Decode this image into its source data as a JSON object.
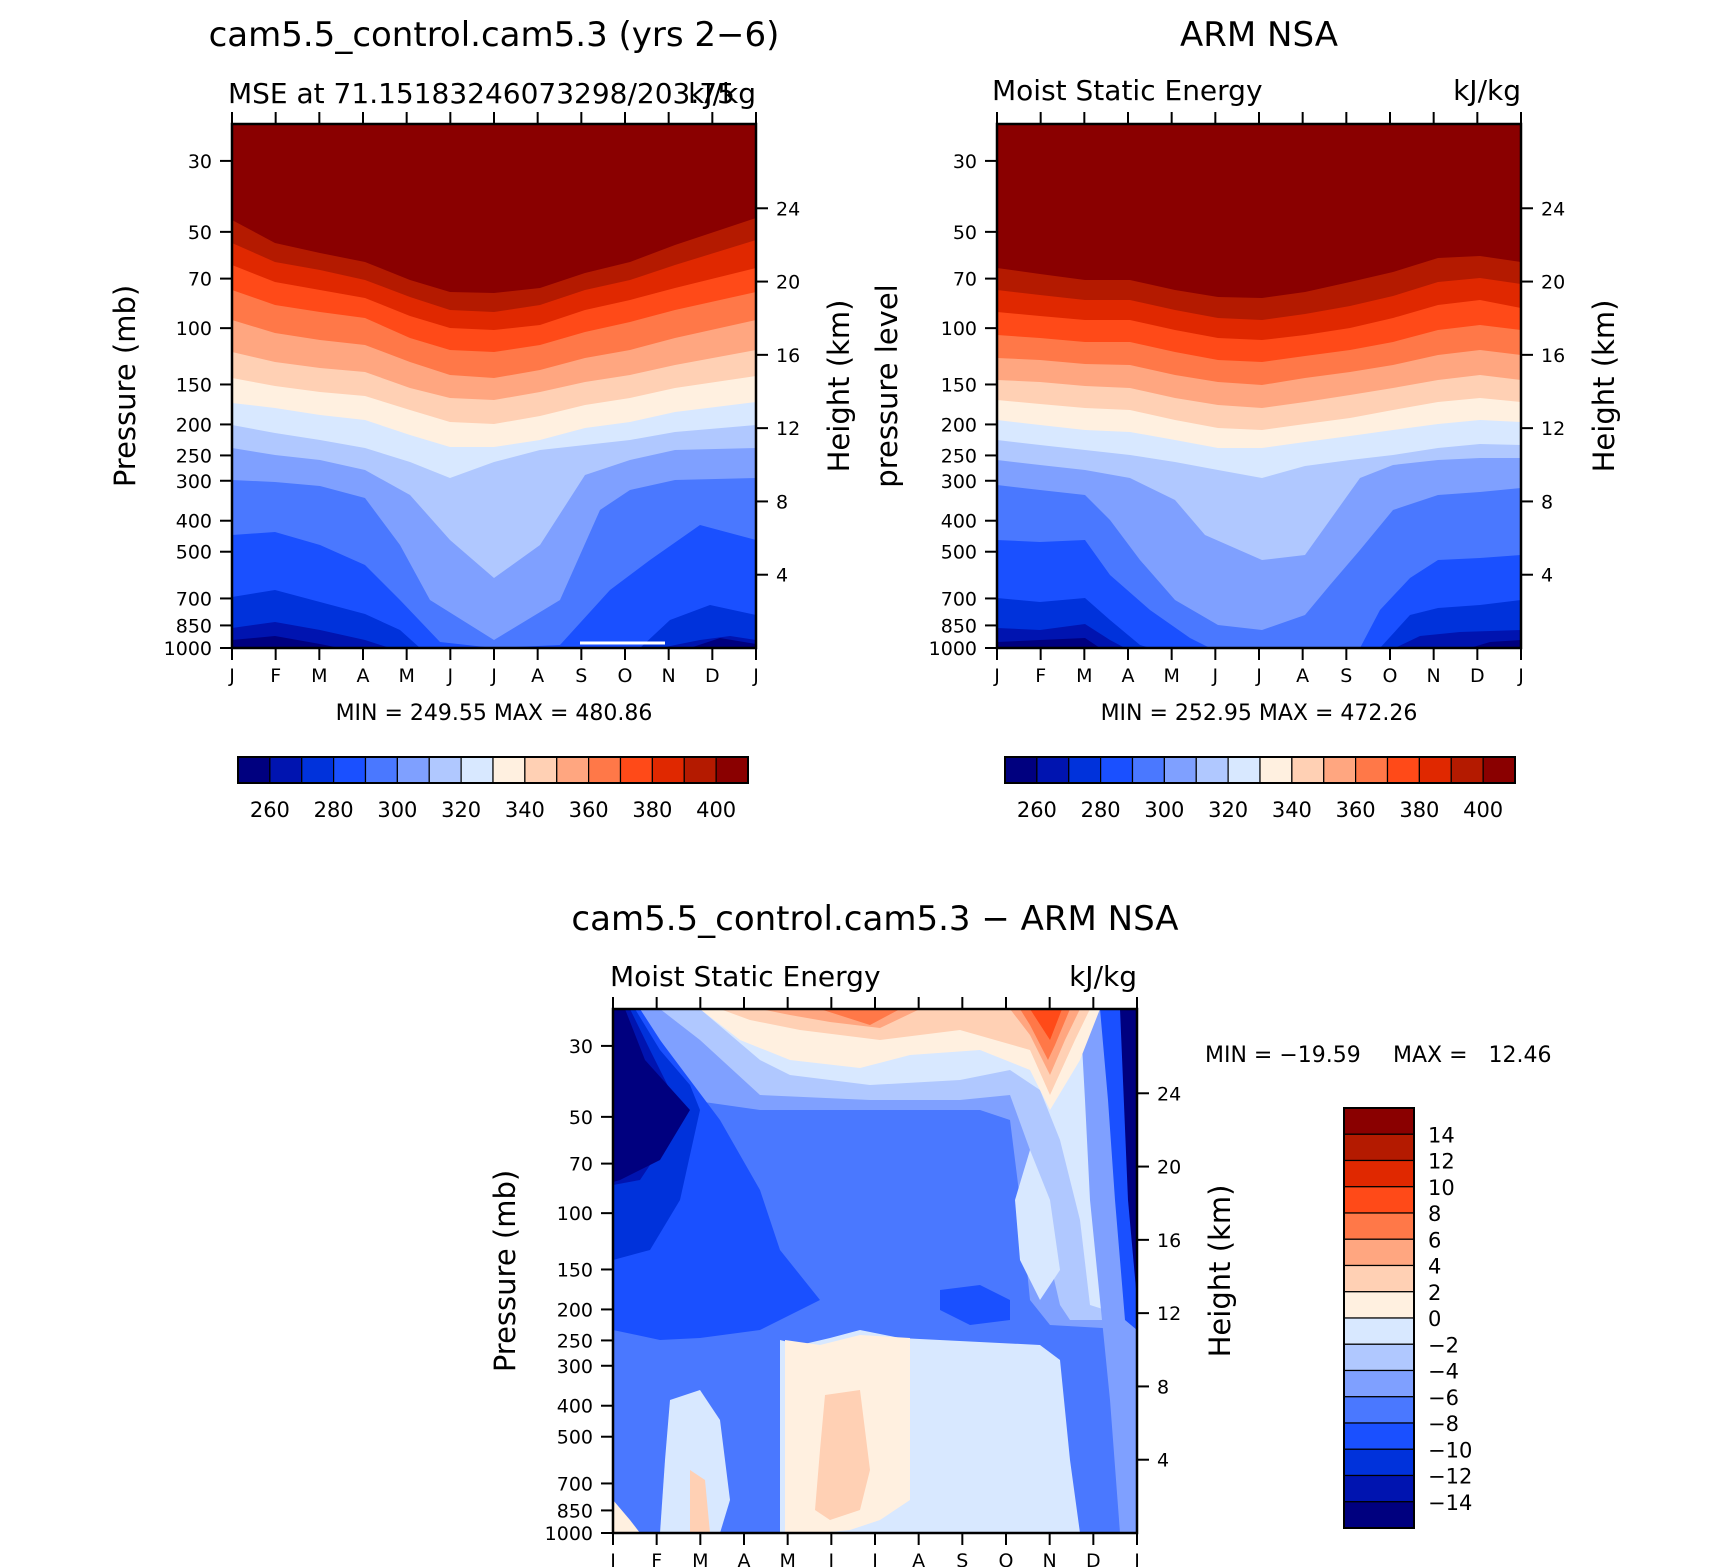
{
  "colors": {
    "levels": [
      "#00007f",
      "#0014b0",
      "#0032db",
      "#1a50ff",
      "#4a78ff",
      "#7fa0ff",
      "#b0c8ff",
      "#d8e8ff",
      "#fff0e0",
      "#ffd0b4",
      "#ffa680",
      "#ff7848",
      "#ff4a18",
      "#e02800",
      "#b41a00",
      "#8a0000"
    ]
  },
  "chart_data": [
    {
      "type": "heatmap",
      "panel": "model",
      "title": "cam5.5_control.cam5.3 (yrs 2−6)",
      "subtitle_left": "MSE at 71.15183246073298/203.75",
      "subtitle_right": "kJ/kg",
      "ylabel": "Pressure (mb)",
      "ylabel_right": "Height (km)",
      "stats": "MIN = 249.55 MAX = 480.86",
      "x": [
        "J",
        "F",
        "M",
        "A",
        "M",
        "J",
        "J",
        "A",
        "S",
        "O",
        "N",
        "D",
        "J"
      ],
      "y_pressure_ticks": [
        "30",
        "50",
        "70",
        "100",
        "150",
        "200",
        "250",
        "300",
        "400",
        "500",
        "700",
        "850",
        "1000"
      ],
      "y_height_ticks": [
        "24",
        "20",
        "16",
        "12",
        "8",
        "4"
      ],
      "legend_labels": [
        "260",
        "280",
        "300",
        "320",
        "340",
        "360",
        "380",
        "400"
      ],
      "level_boundaries_pressure_mb": {
        "low_at_top": [
          48,
          58,
          62,
          66,
          72,
          80,
          84,
          80,
          72,
          66,
          60,
          50,
          48
        ],
        "low_at_bottom": [
          985,
          985,
          990,
          1000,
          1000,
          1000,
          1000,
          1000,
          1000,
          1000,
          990,
          980,
          985
        ],
        "transition_white_top": [
          175,
          180,
          182,
          182,
          195,
          215,
          225,
          215,
          195,
          185,
          182,
          178,
          175
        ]
      }
    },
    {
      "type": "heatmap",
      "panel": "observations",
      "title": "ARM NSA",
      "subtitle_left": "Moist Static Energy",
      "subtitle_right": "kJ/kg",
      "ylabel": "pressure level",
      "ylabel_right": "Height (km)",
      "stats": "MIN = 252.95 MAX = 472.26",
      "x": [
        "J",
        "F",
        "M",
        "A",
        "M",
        "J",
        "J",
        "A",
        "S",
        "O",
        "N",
        "D",
        "J"
      ],
      "y_pressure_ticks": [
        "30",
        "50",
        "70",
        "100",
        "150",
        "200",
        "250",
        "300",
        "400",
        "500",
        "700",
        "850",
        "1000"
      ],
      "y_height_ticks": [
        "24",
        "20",
        "16",
        "12",
        "8",
        "4"
      ],
      "legend_labels": [
        "260",
        "280",
        "300",
        "320",
        "340",
        "360",
        "380",
        "400"
      ]
    },
    {
      "type": "heatmap",
      "panel": "difference",
      "title": "cam5.5_control.cam5.3 − ARM NSA",
      "subtitle_left": "Moist Static Energy",
      "subtitle_right": "kJ/kg",
      "ylabel": "Pressure (mb)",
      "ylabel_right": "Height (km)",
      "stats_min": "MIN = −19.59",
      "stats_max": "MAX =   12.46",
      "x": [
        "J",
        "F",
        "M",
        "A",
        "M",
        "J",
        "J",
        "A",
        "S",
        "O",
        "N",
        "D",
        "J"
      ],
      "y_pressure_ticks": [
        "30",
        "50",
        "70",
        "100",
        "150",
        "200",
        "250",
        "300",
        "400",
        "500",
        "700",
        "850",
        "1000"
      ],
      "y_height_ticks": [
        "24",
        "20",
        "16",
        "12",
        "8",
        "4"
      ],
      "legend_labels": [
        "14",
        "12",
        "10",
        "8",
        "6",
        "4",
        "2",
        "0",
        "−2",
        "−4",
        "−6",
        "−8",
        "−10",
        "−12",
        "−14"
      ]
    }
  ]
}
